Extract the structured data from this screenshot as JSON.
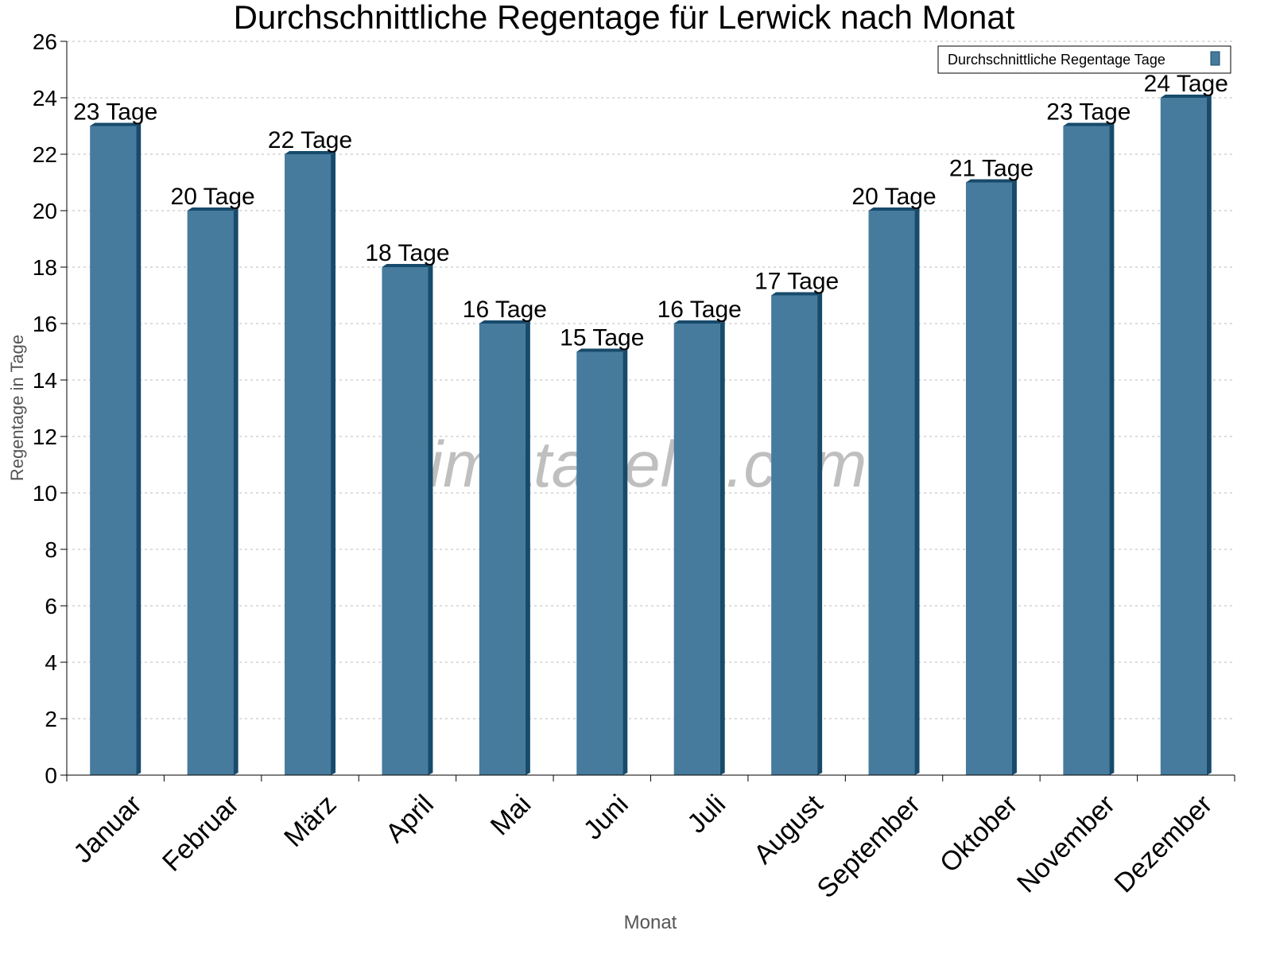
{
  "chart_data": {
    "type": "bar",
    "title": "Durchschnittliche Regentage für Lerwick nach Monat",
    "xlabel": "Monat",
    "ylabel": "Regentage in Tage",
    "categories": [
      "Januar",
      "Februar",
      "März",
      "April",
      "Mai",
      "Juni",
      "Juli",
      "August",
      "September",
      "Oktober",
      "November",
      "Dezember"
    ],
    "series": [
      {
        "name": "Durchschnittliche Regentage Tage",
        "values": [
          23,
          20,
          22,
          18,
          16,
          15,
          16,
          17,
          20,
          21,
          23,
          24
        ]
      }
    ],
    "data_labels": [
      "23 Tage",
      "20 Tage",
      "22 Tage",
      "18 Tage",
      "16 Tage",
      "15 Tage",
      "16 Tage",
      "17 Tage",
      "20 Tage",
      "21 Tage",
      "23 Tage",
      "24 Tage"
    ],
    "ylim": [
      0,
      26
    ],
    "yticks": [
      0,
      2,
      4,
      6,
      8,
      10,
      12,
      14,
      16,
      18,
      20,
      22,
      24,
      26
    ],
    "grid": true,
    "legend_position": "top-right",
    "watermark": "klimatabelle.com",
    "colors": {
      "bar": "#467b9d",
      "bar_dark": "#174a6b"
    }
  }
}
